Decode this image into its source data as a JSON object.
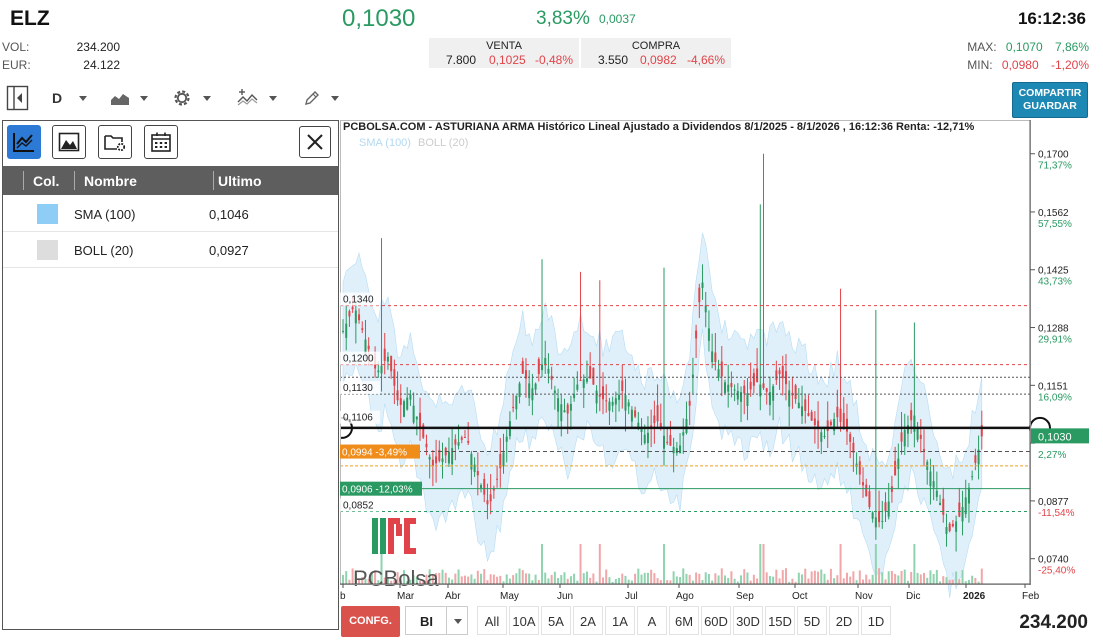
{
  "header": {
    "ticker": "ELZ",
    "price": "0,1030",
    "change_pct": "3,83%",
    "change_abs": "0,0037",
    "time": "16:12:36",
    "vol_label": "VOL:",
    "vol_value": "234.200",
    "eur_label": "EUR:",
    "eur_value": "24.122"
  },
  "quotes": {
    "venta": {
      "label": "VENTA",
      "qty": "7.800",
      "price": "0,1025",
      "pct": "-0,48%"
    },
    "compra": {
      "label": "COMPRA",
      "qty": "3.550",
      "price": "0,0982",
      "pct": "-4,66%"
    }
  },
  "range": {
    "max_label": "MAX:",
    "max_value": "0,1070",
    "max_pct": "7,86%",
    "min_label": "MIN:",
    "min_value": "0,0980",
    "min_pct": "-1,20%"
  },
  "toolbar": {
    "period": "D",
    "share_line1": "COMPARTIR",
    "share_line2": "GUARDAR"
  },
  "panel": {
    "columns": [
      "Col.",
      "Nombre",
      "Ultimo"
    ],
    "rows": [
      {
        "name": "SMA (100)",
        "value": "0,1046",
        "color": "#8ecdf5"
      },
      {
        "name": "BOLL (20)",
        "value": "0,0927",
        "color": "#dddddd"
      }
    ]
  },
  "chart": {
    "title": "PCBOLSA.COM - ASTURIANA ARMA Histórico Lineal Ajustado a Dividendos 8/1/2025 - 8/1/2026 , 16:12:36 Renta: -12,71%",
    "legend_sma": "SMA (100)",
    "legend_boll": "BOLL (20)",
    "watermark": "PCBolsa",
    "right_ticks": [
      {
        "price": "0,1700",
        "pct": "71,37%",
        "pctcolor": "#2a9a62"
      },
      {
        "price": "0,1562",
        "pct": "57,55%",
        "pctcolor": "#2a9a62"
      },
      {
        "price": "0,1425",
        "pct": "43,73%",
        "pctcolor": "#2a9a62"
      },
      {
        "price": "0,1288",
        "pct": "29,91%",
        "pctcolor": "#2a9a62"
      },
      {
        "price": "0,1151",
        "pct": "16,09%",
        "pctcolor": "#2a9a62"
      },
      {
        "price": "",
        "pct": "2,27%",
        "pctcolor": "#2a9a62"
      },
      {
        "price": "0,0877",
        "pct": "-11,54%",
        "pctcolor": "#e0444a"
      },
      {
        "price": "0,0740",
        "pct": "-25,40%",
        "pctcolor": "#e0444a"
      }
    ],
    "current_price_label": "0,1030",
    "left_levels": [
      "0,1340",
      "0,1200",
      "0,1130",
      "0,1106",
      "0,0852"
    ],
    "tag_orange": "0,0994  -3,49%",
    "tag_green": "0,0906  -12,03%",
    "months": [
      "b",
      "Mar",
      "Abr",
      "May",
      "Jun",
      "Jul",
      "Ago",
      "Sep",
      "Oct",
      "Nov",
      "Dic",
      "2026",
      "Feb"
    ]
  },
  "chart_data": {
    "type": "candlestick",
    "title": "PCBOLSA.COM - ASTURIANA ARMA Histórico Lineal Ajustado a Dividendos 8/1/2025 - 8/1/2026 , 16:12:36 Renta: -12,71%",
    "x_labels": [
      "b",
      "Mar",
      "Abr",
      "May",
      "Jun",
      "Jul",
      "Ago",
      "Sep",
      "Oct",
      "Nov",
      "Dic",
      "2026",
      "Feb"
    ],
    "y_ticks": [
      0.17,
      0.1562,
      0.1425,
      0.1288,
      0.1151,
      0.0877,
      0.074
    ],
    "ylim": [
      0.068,
      0.178
    ],
    "series": [
      {
        "name": "SMA (100)",
        "last": 0.1046
      },
      {
        "name": "BOLL (20)",
        "last": 0.0927
      }
    ],
    "last_price": 0.103,
    "reference_levels": [
      0.134,
      0.12,
      0.113,
      0.1106,
      0.0994,
      0.0906,
      0.0852
    ],
    "price_path": [
      0.128,
      0.134,
      0.126,
      0.118,
      0.122,
      0.11,
      0.113,
      0.104,
      0.096,
      0.098,
      0.101,
      0.103,
      0.094,
      0.086,
      0.095,
      0.108,
      0.118,
      0.114,
      0.122,
      0.113,
      0.108,
      0.116,
      0.117,
      0.112,
      0.111,
      0.114,
      0.108,
      0.103,
      0.107,
      0.101,
      0.1,
      0.111,
      0.141,
      0.122,
      0.116,
      0.114,
      0.113,
      0.116,
      0.113,
      0.118,
      0.113,
      0.11,
      0.106,
      0.103,
      0.108,
      0.104,
      0.095,
      0.086,
      0.082,
      0.09,
      0.104,
      0.108,
      0.098,
      0.09,
      0.08,
      0.084,
      0.092,
      0.103
    ],
    "grid": false
  },
  "bottom": {
    "conf": "CONFG.",
    "chart_mode": "BI",
    "ranges": [
      "All",
      "10A",
      "5A",
      "2A",
      "1A",
      "A",
      "6M",
      "60D",
      "30D",
      "15D",
      "5D",
      "2D",
      "1D"
    ],
    "volume": "234.200"
  },
  "colors": {
    "up": "#2a9a62",
    "down": "#e0444a",
    "accent": "#1e88b4",
    "boll_fill": "#cfe8f8"
  }
}
